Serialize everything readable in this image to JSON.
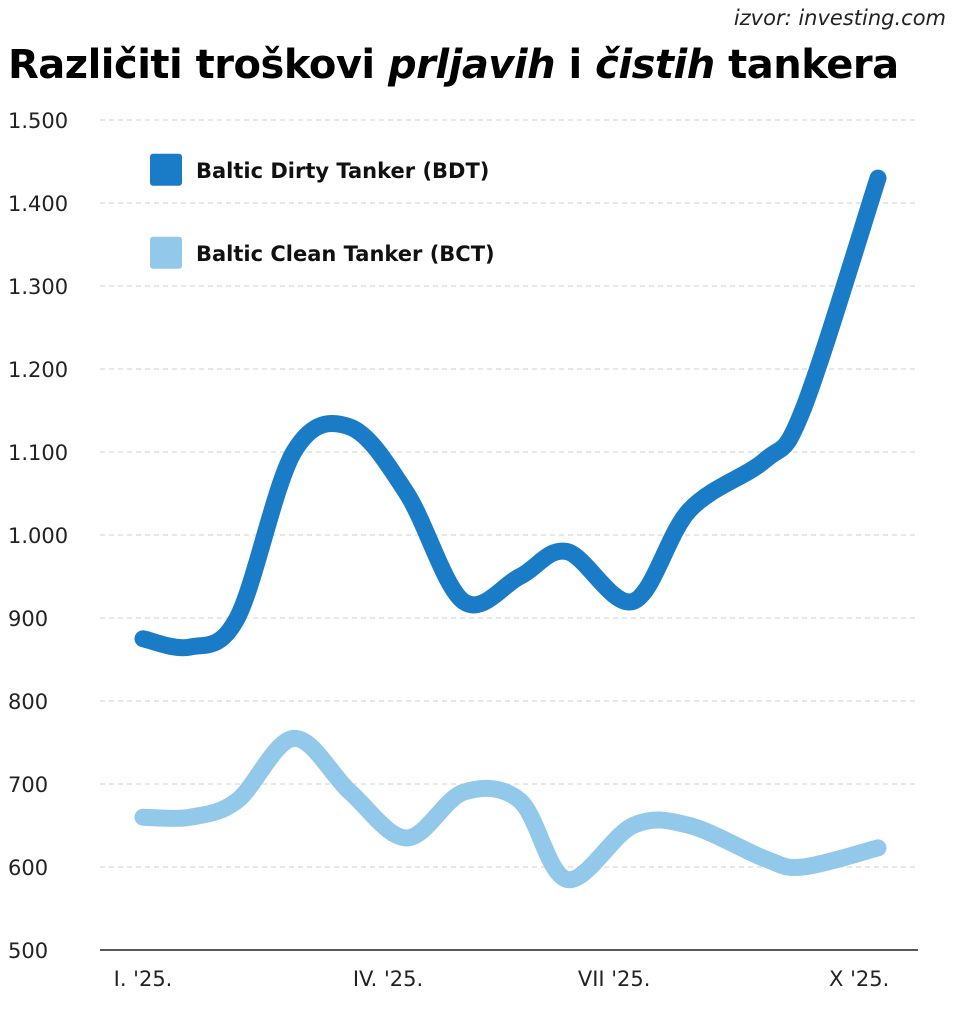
{
  "source": "izvor: investing.com",
  "title": {
    "part1": "Različiti troškovi ",
    "part2": "prljavih",
    "part3": " i ",
    "part4": "čistih",
    "part5": " tankera"
  },
  "chart_data": {
    "type": "line",
    "x": [
      0,
      0.5,
      1,
      1.6,
      2.2,
      2.8,
      3.4,
      4,
      4.5,
      5.2,
      5.8,
      6.6,
      7,
      7.8
    ],
    "x_ticks": [
      {
        "pos": 0,
        "label": "I. '25."
      },
      {
        "pos": 2.6,
        "label": "IV. '25."
      },
      {
        "pos": 5,
        "label": "VII '25."
      },
      {
        "pos": 7.6,
        "label": "X '25."
      }
    ],
    "ylim": [
      500,
      1500
    ],
    "y_ticks": [
      500,
      600,
      700,
      800,
      900,
      1000,
      1100,
      1200,
      1300,
      1400,
      1500
    ],
    "y_tick_labels": [
      "500",
      "600",
      "700",
      "800",
      "900",
      "1.000",
      "1.100",
      "1.200",
      "1.300",
      "1.400",
      "1.500"
    ],
    "grid": true,
    "legend_placement": "top-left",
    "series": [
      {
        "name": "Baltic Dirty Tanker (BDT)",
        "color": "#1a7cc6",
        "values": [
          875,
          865,
          900,
          1100,
          1130,
          1050,
          920,
          950,
          980,
          920,
          1030,
          1090,
          1150,
          1430
        ]
      },
      {
        "name": "Baltic Clean Tanker (BCT)",
        "color": "#92c9ea",
        "values": [
          660,
          660,
          680,
          755,
          690,
          635,
          690,
          680,
          585,
          650,
          650,
          610,
          600,
          623
        ]
      }
    ]
  }
}
